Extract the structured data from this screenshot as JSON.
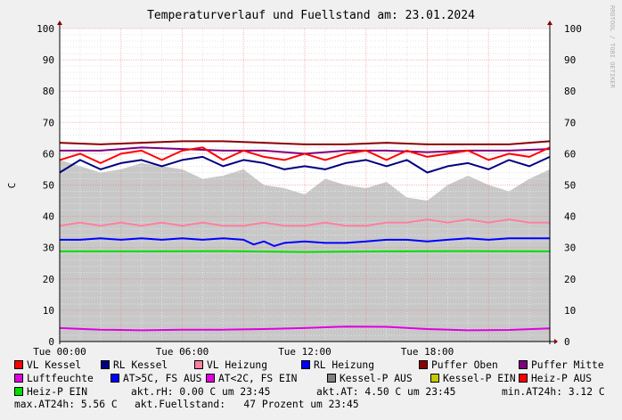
{
  "chart_data": {
    "type": "line",
    "title": "Temperaturverlauf und Fuellstand am: 23.01.2024",
    "watermark": "RRDTOOL / TOBI OETIKER",
    "ylabel": "C",
    "ylim": [
      0,
      100
    ],
    "yticks": [
      0,
      10,
      20,
      30,
      40,
      50,
      60,
      70,
      80,
      90,
      100
    ],
    "xlim": [
      0,
      24
    ],
    "xticks": [
      {
        "hour": 0,
        "label": "Tue 00:00"
      },
      {
        "hour": 6,
        "label": "Tue 06:00"
      },
      {
        "hour": 12,
        "label": "Tue 12:00"
      },
      {
        "hour": 18,
        "label": "Tue 18:00"
      }
    ],
    "area": {
      "name": "Füllstand",
      "color": "#c8c8c8",
      "x": [
        0,
        1,
        2,
        3,
        4,
        5,
        6,
        7,
        8,
        9,
        10,
        11,
        12,
        13,
        14,
        15,
        16,
        17,
        18,
        19,
        20,
        21,
        22,
        23,
        24
      ],
      "values": [
        58,
        56,
        54,
        55,
        57,
        56,
        55,
        52,
        53,
        55,
        50,
        49,
        47,
        52,
        50,
        49,
        51,
        46,
        45,
        50,
        53,
        50,
        48,
        52,
        55
      ]
    },
    "series": [
      {
        "name": "Puffer Oben",
        "color": "#8b0000",
        "x": [
          0,
          2,
          4,
          6,
          8,
          10,
          12,
          14,
          16,
          18,
          20,
          22,
          24
        ],
        "values": [
          63.5,
          63,
          63.5,
          64,
          64,
          63.5,
          63,
          63,
          63.5,
          63,
          63,
          63,
          64
        ]
      },
      {
        "name": "Puffer Mitte",
        "color": "#800080",
        "x": [
          0,
          2,
          4,
          6,
          8,
          10,
          12,
          14,
          16,
          18,
          20,
          22,
          24
        ],
        "values": [
          61,
          61,
          62,
          61.5,
          61,
          61,
          60,
          61,
          61,
          60.5,
          61,
          61,
          61.5
        ]
      },
      {
        "name": "VL Kessel",
        "color": "#ff0000",
        "x": [
          0,
          1,
          2,
          3,
          4,
          5,
          6,
          7,
          8,
          9,
          10,
          11,
          12,
          13,
          14,
          15,
          16,
          17,
          18,
          19,
          20,
          21,
          22,
          23,
          24
        ],
        "values": [
          58,
          60,
          57,
          60,
          61,
          58,
          61,
          62,
          58,
          61,
          59,
          58,
          60,
          58,
          60,
          61,
          58,
          61,
          59,
          60,
          61,
          58,
          60,
          59,
          62
        ]
      },
      {
        "name": "RL Kessel",
        "color": "#000080",
        "x": [
          0,
          1,
          2,
          3,
          4,
          5,
          6,
          7,
          8,
          9,
          10,
          11,
          12,
          13,
          14,
          15,
          16,
          17,
          18,
          19,
          20,
          21,
          22,
          23,
          24
        ],
        "values": [
          54,
          58,
          55,
          57,
          58,
          56,
          58,
          59,
          56,
          58,
          57,
          55,
          56,
          55,
          57,
          58,
          56,
          58,
          54,
          56,
          57,
          55,
          58,
          56,
          59
        ]
      },
      {
        "name": "VL Heizung",
        "color": "#ff7f9f",
        "x": [
          0,
          1,
          2,
          3,
          4,
          5,
          6,
          7,
          8,
          9,
          10,
          11,
          12,
          13,
          14,
          15,
          16,
          17,
          18,
          19,
          20,
          21,
          22,
          23,
          24
        ],
        "values": [
          37,
          38,
          37,
          38,
          37,
          38,
          37,
          38,
          37,
          37,
          38,
          37,
          37,
          38,
          37,
          37,
          38,
          38,
          39,
          38,
          39,
          38,
          39,
          38,
          38
        ]
      },
      {
        "name": "RL Heizung",
        "color": "#0000ff",
        "x": [
          0,
          1,
          2,
          3,
          4,
          5,
          6,
          7,
          8,
          9,
          9.5,
          10,
          10.5,
          11,
          12,
          13,
          14,
          15,
          16,
          17,
          18,
          19,
          20,
          21,
          22,
          23,
          24
        ],
        "values": [
          32.5,
          32.5,
          33,
          32.5,
          33,
          32.5,
          33,
          32.5,
          33,
          32.5,
          31,
          32,
          30.5,
          31.5,
          32,
          31.5,
          31.5,
          32,
          32.5,
          32.5,
          32,
          32.5,
          33,
          32.5,
          33,
          33,
          33
        ]
      },
      {
        "name": "Heiz-P EIN",
        "color": "#00e000",
        "x": [
          0,
          4,
          8,
          12,
          16,
          20,
          24
        ],
        "values": [
          28.8,
          28.8,
          28.9,
          28.6,
          28.8,
          28.9,
          28.8
        ]
      },
      {
        "name": "Luftfeuchte",
        "color": "#e000e0",
        "x": [
          0,
          2,
          4,
          6,
          8,
          10,
          12,
          14,
          16,
          18,
          20,
          22,
          24
        ],
        "values": [
          4.3,
          3.8,
          3.6,
          3.8,
          3.8,
          4.0,
          4.3,
          4.8,
          4.7,
          4.0,
          3.6,
          3.7,
          4.2
        ]
      }
    ],
    "legend": [
      {
        "label": "VL Kessel",
        "color": "#ff0000"
      },
      {
        "label": "RL Kessel",
        "color": "#000080"
      },
      {
        "label": "VL Heizung",
        "color": "#ff7f9f"
      },
      {
        "label": "RL Heizung",
        "color": "#0000ff"
      },
      {
        "label": "Puffer Oben",
        "color": "#8b0000"
      },
      {
        "label": "Puffer Mitte",
        "color": "#800080"
      },
      {
        "label": "Luftfeuchte",
        "color": "#e000e0"
      },
      {
        "label": "AT>5C, FS AUS",
        "color": "#0000ff"
      },
      {
        "label": "AT<2C, FS EIN",
        "color": "#e000e0"
      },
      {
        "label": "Kessel-P AUS",
        "color": "#808080"
      },
      {
        "label": "Kessel-P EIN",
        "color": "#c8c800"
      },
      {
        "label": "Heiz-P AUS",
        "color": "#ff0000"
      },
      {
        "label": "Heiz-P EIN",
        "color": "#00e000"
      }
    ],
    "stats": {
      "rh": "akt.rH: 0.00 C um 23:45",
      "at": "akt.AT: 4.50 C um 23:45",
      "min": "min.AT24h: 3.12 C",
      "max": "max.AT24h: 5.56 C",
      "fuellstand": "akt.Fuellstand:   47 Prozent um 23:45"
    }
  }
}
